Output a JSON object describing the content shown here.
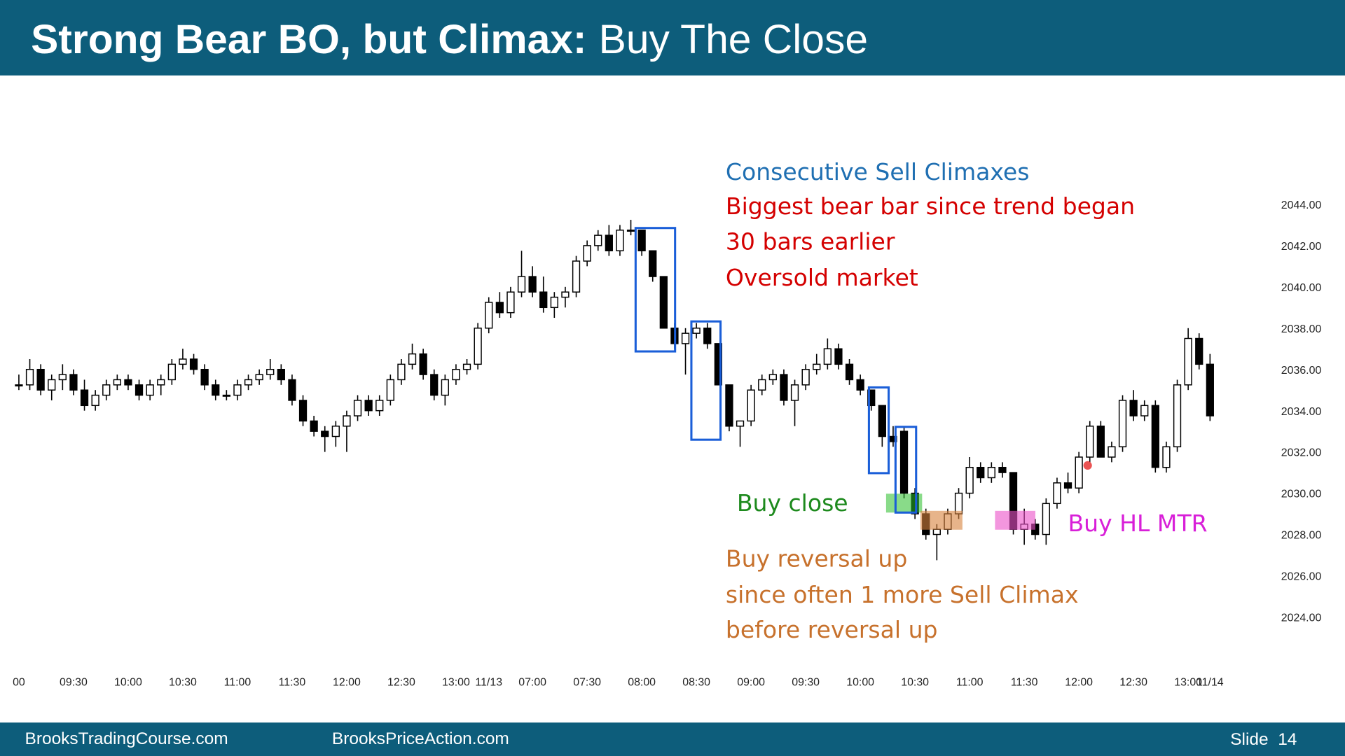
{
  "header": {
    "title_bold": "Strong Bear BO, but Climax:",
    "title_rest": "Buy The Close"
  },
  "chart_data": {
    "type": "candlestick",
    "categories": [
      "00",
      null,
      null,
      null,
      null,
      "09:30",
      null,
      null,
      null,
      null,
      "10:00",
      null,
      null,
      null,
      null,
      "10:30",
      null,
      null,
      null,
      null,
      "11:00",
      null,
      null,
      null,
      null,
      "11:30",
      null,
      null,
      null,
      null,
      "12:00",
      null,
      null,
      null,
      null,
      "12:30",
      null,
      null,
      null,
      null,
      "13:00",
      null,
      null,
      "11/13",
      null,
      null,
      null,
      "07:00",
      null,
      null,
      null,
      null,
      "07:30",
      null,
      null,
      null,
      null,
      "08:00",
      null,
      null,
      null,
      null,
      "08:30",
      null,
      null,
      null,
      null,
      "09:00",
      null,
      null,
      null,
      null,
      "09:30",
      null,
      null,
      null,
      null,
      "10:00",
      null,
      null,
      null,
      null,
      "10:30",
      null,
      null,
      null,
      null,
      "11:00",
      null,
      null,
      null,
      null,
      "11:30",
      null,
      null,
      null,
      null,
      "12:00",
      null,
      null,
      null,
      null,
      "12:30",
      null,
      null,
      null,
      null,
      "13:00",
      null,
      "11/14"
    ],
    "ohlc": [
      [
        2035.25,
        2035.75,
        2035,
        2035.25
      ],
      [
        2035.25,
        2036.5,
        2035,
        2036
      ],
      [
        2036,
        2036.25,
        2034.75,
        2035
      ],
      [
        2035,
        2035.75,
        2034.5,
        2035.5
      ],
      [
        2035.5,
        2036.25,
        2035,
        2035.75
      ],
      [
        2035.75,
        2036,
        2034.75,
        2035
      ],
      [
        2035,
        2035.5,
        2034,
        2034.25
      ],
      [
        2034.25,
        2035,
        2034,
        2034.75
      ],
      [
        2034.75,
        2035.5,
        2034.5,
        2035.25
      ],
      [
        2035.25,
        2035.75,
        2035,
        2035.5
      ],
      [
        2035.5,
        2035.75,
        2035,
        2035.25
      ],
      [
        2035.25,
        2035.5,
        2034.5,
        2034.75
      ],
      [
        2034.75,
        2035.5,
        2034.5,
        2035.25
      ],
      [
        2035.25,
        2035.75,
        2034.75,
        2035.5
      ],
      [
        2035.5,
        2036.5,
        2035.25,
        2036.25
      ],
      [
        2036.25,
        2037,
        2036,
        2036.5
      ],
      [
        2036.5,
        2036.75,
        2035.75,
        2036
      ],
      [
        2036,
        2036.25,
        2035,
        2035.25
      ],
      [
        2035.25,
        2035.5,
        2034.5,
        2034.75
      ],
      [
        2034.75,
        2035,
        2034.5,
        2034.75
      ],
      [
        2034.75,
        2035.5,
        2034.5,
        2035.25
      ],
      [
        2035.25,
        2035.75,
        2035,
        2035.5
      ],
      [
        2035.5,
        2036,
        2035.25,
        2035.75
      ],
      [
        2035.75,
        2036.5,
        2035.5,
        2036
      ],
      [
        2036,
        2036.25,
        2035.25,
        2035.5
      ],
      [
        2035.5,
        2035.75,
        2034.25,
        2034.5
      ],
      [
        2034.5,
        2034.75,
        2033.25,
        2033.5
      ],
      [
        2033.5,
        2033.75,
        2032.75,
        2033
      ],
      [
        2033,
        2033.25,
        2032,
        2032.75
      ],
      [
        2032.75,
        2033.5,
        2032.25,
        2033.25
      ],
      [
        2033.25,
        2034,
        2032,
        2033.75
      ],
      [
        2033.75,
        2034.75,
        2033.5,
        2034.5
      ],
      [
        2034.5,
        2034.75,
        2033.75,
        2034
      ],
      [
        2034,
        2034.75,
        2033.75,
        2034.5
      ],
      [
        2034.5,
        2035.75,
        2034.25,
        2035.5
      ],
      [
        2035.5,
        2036.5,
        2035.25,
        2036.25
      ],
      [
        2036.25,
        2037.25,
        2036,
        2036.75
      ],
      [
        2036.75,
        2037,
        2035.5,
        2035.75
      ],
      [
        2035.75,
        2036,
        2034.5,
        2034.75
      ],
      [
        2034.75,
        2035.75,
        2034.25,
        2035.5
      ],
      [
        2035.5,
        2036.25,
        2035.25,
        2036
      ],
      [
        2036,
        2036.5,
        2035.75,
        2036.25
      ],
      [
        2036.25,
        2038.25,
        2036,
        2038
      ],
      [
        2038,
        2039.5,
        2037.75,
        2039.25
      ],
      [
        2039.25,
        2039.75,
        2038.5,
        2038.75
      ],
      [
        2038.75,
        2040,
        2038.5,
        2039.75
      ],
      [
        2039.75,
        2041.75,
        2039.5,
        2040.5
      ],
      [
        2040.5,
        2041,
        2039.5,
        2039.75
      ],
      [
        2039.75,
        2040.5,
        2038.75,
        2039
      ],
      [
        2039,
        2039.75,
        2038.5,
        2039.5
      ],
      [
        2039.5,
        2040,
        2039,
        2039.75
      ],
      [
        2039.75,
        2041.5,
        2039.5,
        2041.25
      ],
      [
        2041.25,
        2042.25,
        2041,
        2042
      ],
      [
        2042,
        2042.75,
        2041.75,
        2042.5
      ],
      [
        2042.5,
        2043,
        2041.5,
        2041.75
      ],
      [
        2041.75,
        2043,
        2041.5,
        2042.75
      ],
      [
        2042.75,
        2043.25,
        2042.5,
        2042.75
      ],
      [
        2042.75,
        2042.75,
        2041.5,
        2041.75
      ],
      [
        2041.75,
        2041.75,
        2040.25,
        2040.5
      ],
      [
        2040.5,
        2040.5,
        2038,
        2038
      ],
      [
        2038,
        2038.25,
        2037,
        2037.25
      ],
      [
        2037.25,
        2038,
        2035.75,
        2037.75
      ],
      [
        2037.75,
        2038.25,
        2037.5,
        2038
      ],
      [
        2038,
        2038.25,
        2037,
        2037.25
      ],
      [
        2037.25,
        2037.25,
        2035.25,
        2035.25
      ],
      [
        2035.25,
        2035.25,
        2033,
        2033.25
      ],
      [
        2033.25,
        2033.5,
        2032.25,
        2033.5
      ],
      [
        2033.5,
        2035.25,
        2033.25,
        2035
      ],
      [
        2035,
        2035.75,
        2034.75,
        2035.5
      ],
      [
        2035.5,
        2036,
        2035.25,
        2035.75
      ],
      [
        2035.75,
        2036,
        2034.25,
        2034.5
      ],
      [
        2034.5,
        2035.5,
        2033.25,
        2035.25
      ],
      [
        2035.25,
        2036.25,
        2035,
        2036
      ],
      [
        2036,
        2036.75,
        2035.75,
        2036.25
      ],
      [
        2036.25,
        2037.5,
        2036,
        2037
      ],
      [
        2037,
        2037.25,
        2036,
        2036.25
      ],
      [
        2036.25,
        2036.5,
        2035.25,
        2035.5
      ],
      [
        2035.5,
        2035.75,
        2034.75,
        2035
      ],
      [
        2035,
        2035,
        2034,
        2034.25
      ],
      [
        2034.25,
        2034.25,
        2032.25,
        2032.75
      ],
      [
        2032.75,
        2033.25,
        2032.25,
        2032.5
      ],
      [
        2033,
        2033.25,
        2029.75,
        2030
      ],
      [
        2030,
        2030.25,
        2028.75,
        2029
      ],
      [
        2029,
        2029.25,
        2027.75,
        2028
      ],
      [
        2028,
        2028.5,
        2026.75,
        2028.25
      ],
      [
        2028.25,
        2029.25,
        2028,
        2029
      ],
      [
        2029,
        2030.25,
        2028.75,
        2030
      ],
      [
        2030,
        2031.75,
        2029.75,
        2031.25
      ],
      [
        2031.25,
        2031.5,
        2030.5,
        2030.75
      ],
      [
        2030.75,
        2031.5,
        2030.5,
        2031.25
      ],
      [
        2031.25,
        2031.5,
        2030.75,
        2031
      ],
      [
        2031,
        2031,
        2028,
        2028.25
      ],
      [
        2028.25,
        2029.25,
        2027.5,
        2028.5
      ],
      [
        2028.5,
        2028.75,
        2027.75,
        2028
      ],
      [
        2028,
        2029.75,
        2027.5,
        2029.5
      ],
      [
        2029.5,
        2030.75,
        2029.25,
        2030.5
      ],
      [
        2030.5,
        2031,
        2030,
        2030.25
      ],
      [
        2030.25,
        2032,
        2030,
        2031.75
      ],
      [
        2031.75,
        2033.5,
        2031.5,
        2033.25
      ],
      [
        2033.25,
        2033.5,
        2031.75,
        2031.75
      ],
      [
        2031.75,
        2032.5,
        2031.5,
        2032.25
      ],
      [
        2032.25,
        2034.75,
        2032,
        2034.5
      ],
      [
        2034.5,
        2035,
        2033.5,
        2033.75
      ],
      [
        2033.75,
        2034.5,
        2033.5,
        2034.25
      ],
      [
        2034.25,
        2034.5,
        2031,
        2031.25
      ],
      [
        2031.25,
        2032.5,
        2031,
        2032.25
      ],
      [
        2032.25,
        2035.5,
        2032,
        2035.25
      ],
      [
        2035.25,
        2038,
        2035,
        2037.5
      ],
      [
        2037.5,
        2037.75,
        2036,
        2036.25
      ],
      [
        2036.25,
        2036.75,
        2033.5,
        2033.75
      ]
    ],
    "bull_color": "#ffffff",
    "bear_color": "#000000",
    "ylim": [
      2021.5,
      2049.75
    ],
    "yticks": [
      {
        "value": 2024,
        "label": "2024.00"
      },
      {
        "value": 2026,
        "label": "2026.00"
      },
      {
        "value": 2028,
        "label": "2028.00"
      },
      {
        "value": 2030,
        "label": "2030.00"
      },
      {
        "value": 2032,
        "label": "2032.00"
      },
      {
        "value": 2034,
        "label": "2034.00"
      },
      {
        "value": 2036,
        "label": "2036.00"
      },
      {
        "value": 2038,
        "label": "2038.00"
      },
      {
        "value": 2040,
        "label": "2040.00"
      },
      {
        "value": 2042,
        "label": "2042.00"
      },
      {
        "value": 2044,
        "label": "2044.00"
      }
    ],
    "annotations": {
      "climaxes": "Consecutive Sell Climaxes",
      "biggest": [
        "Biggest bear bar since trend began",
        "30 bars earlier",
        "Oversold market"
      ],
      "buy_close": "Buy close",
      "reversal": [
        "Buy reversal up",
        "since often 1 more Sell Climax",
        "before reversal up"
      ],
      "hl": "Buy HL MTR"
    }
  },
  "footer": {
    "left": "BrooksTradingCourse.com",
    "center": "BrooksPriceAction.com",
    "slide": "Slide  14"
  }
}
